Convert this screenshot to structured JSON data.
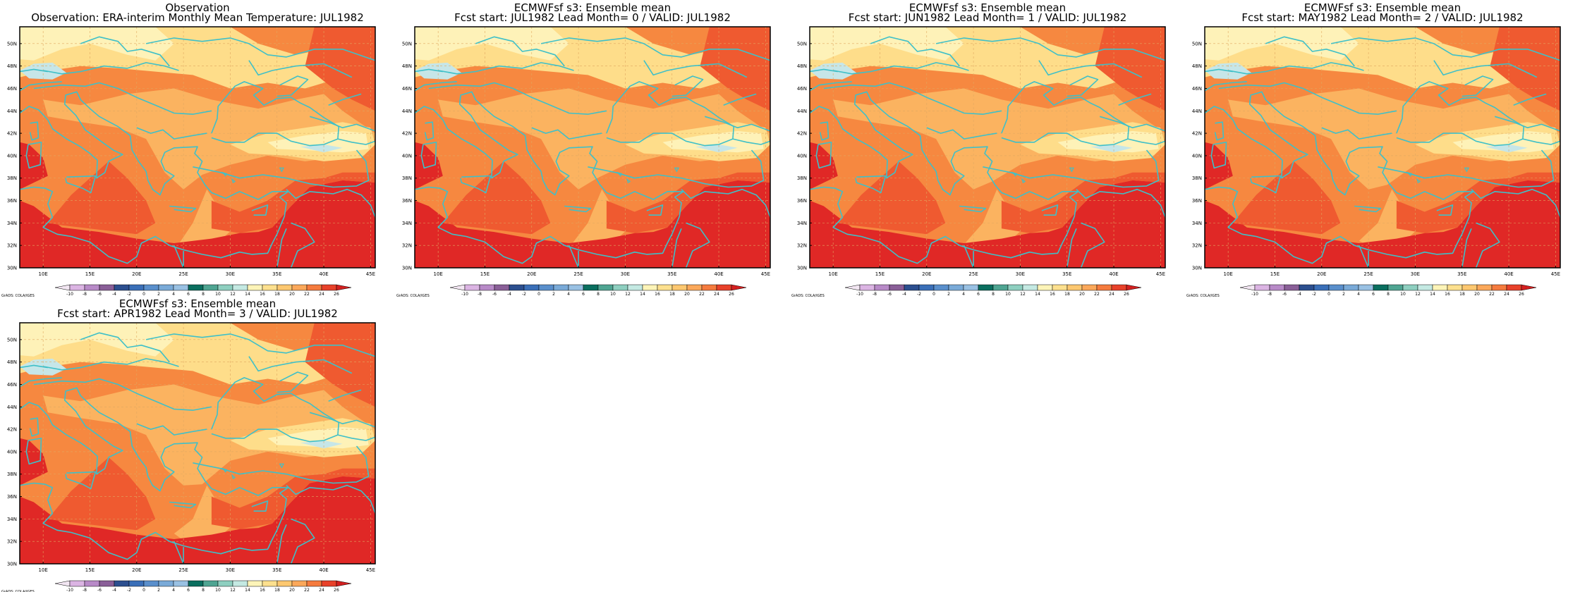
{
  "panels": [
    {
      "title1": "Observation",
      "title2": "Observation: ERA-interim Monthly Mean Temperature: JUL1982",
      "variant": 0
    },
    {
      "title1": "ECMWFsf s3: Ensemble mean",
      "title2": "Fcst start: JUL1982  Lead Month= 0 / VALID: JUL1982",
      "variant": 1
    },
    {
      "title1": "ECMWFsf s3: Ensemble mean",
      "title2": "Fcst start: JUN1982  Lead Month= 1 / VALID: JUL1982",
      "variant": 2
    },
    {
      "title1": "ECMWFsf s3: Ensemble mean",
      "title2": "Fcst start: MAY1982  Lead Month= 2 / VALID: JUL1982",
      "variant": 3
    },
    {
      "title1": "ECMWFsf s3: Ensemble mean",
      "title2": "Fcst start: APR1982  Lead Month= 3 / VALID: JUL1982",
      "variant": 4
    }
  ],
  "lat_labels": [
    "30N",
    "32N",
    "34N",
    "36N",
    "38N",
    "40N",
    "42N",
    "44N",
    "46N",
    "48N",
    "50N"
  ],
  "lon_labels": [
    "10E",
    "15E",
    "20E",
    "25E",
    "30E",
    "35E",
    "40E",
    "45E"
  ],
  "colorbar": {
    "values": [
      "-10",
      "-8",
      "-6",
      "-4",
      "-2",
      "0",
      "2",
      "4",
      "6",
      "8",
      "10",
      "12",
      "14",
      "16",
      "18",
      "20",
      "22",
      "24",
      "26"
    ],
    "colors": [
      "#f2e6f2",
      "#dbb4e3",
      "#b88ac8",
      "#8a5f98",
      "#2c4f8f",
      "#3a6fb8",
      "#5a8fcc",
      "#7aaad8",
      "#99c1e3",
      "#0a6f5f",
      "#4fa592",
      "#8ecfc0",
      "#c4e9e2",
      "#fdf4b8",
      "#fde08e",
      "#fdc870",
      "#fba85a",
      "#f57b3e",
      "#e8412a",
      "#d32020"
    ],
    "credit": "GrADS: COLA/IGES"
  },
  "fill_colors": {
    "c18": "#fef2b8",
    "c20": "#fedd8a",
    "c22": "#fbb360",
    "c24": "#f68840",
    "c26": "#ef5a30",
    "c28": "#e02826",
    "cold": "#c6e6e8",
    "coast": "#3fc0c8",
    "grid": "#e0a860"
  }
}
